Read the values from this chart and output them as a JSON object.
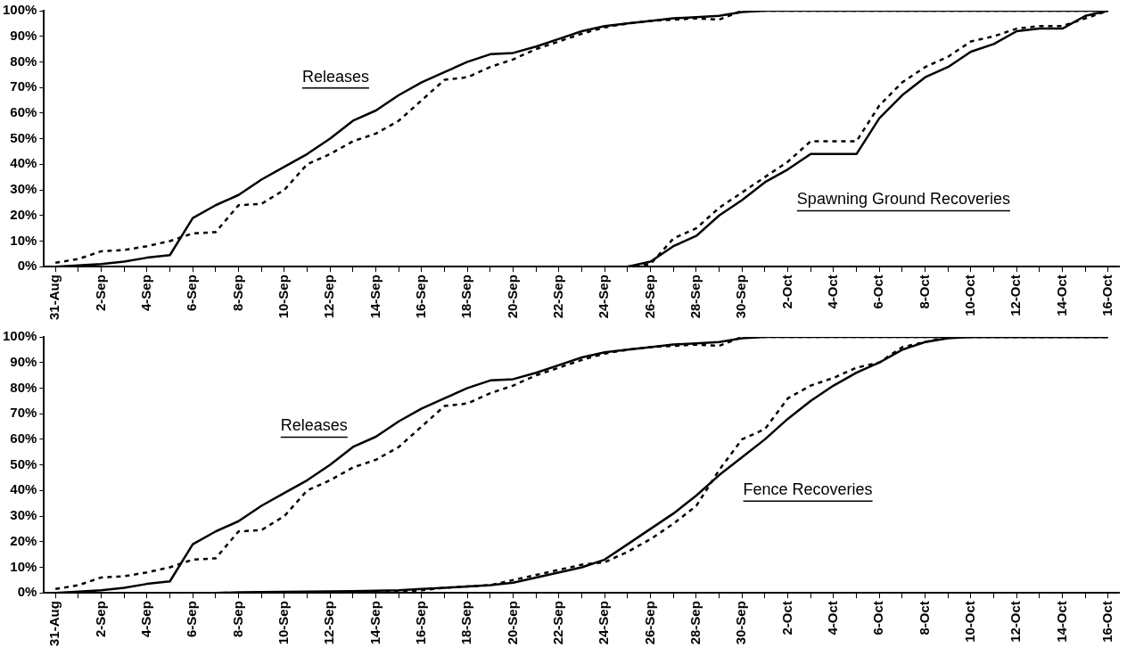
{
  "chart_data": [
    {
      "type": "line",
      "categories": [
        "31-Aug",
        null,
        "2-Sep",
        null,
        "4-Sep",
        null,
        "6-Sep",
        null,
        "8-Sep",
        null,
        "10-Sep",
        null,
        "12-Sep",
        null,
        "14-Sep",
        null,
        "16-Sep",
        null,
        "18-Sep",
        null,
        "20-Sep",
        null,
        "22-Sep",
        null,
        "24-Sep",
        null,
        "26-Sep",
        null,
        "28-Sep",
        null,
        "30-Sep",
        null,
        "2-Oct",
        null,
        "4-Oct",
        null,
        "6-Oct",
        null,
        "8-Oct",
        null,
        "10-Oct",
        null,
        "12-Oct",
        null,
        "14-Oct",
        null,
        "16-Oct"
      ],
      "series": [
        {
          "color": "#000000",
          "line_style": "solid",
          "values": [
            0,
            0.5,
            1,
            2,
            3.5,
            4.5,
            19,
            24,
            28,
            34,
            39,
            44,
            50,
            57,
            61,
            67,
            72,
            76,
            80,
            83,
            83.5,
            86,
            89,
            92,
            94,
            95,
            96,
            97,
            97.5,
            98,
            99.5,
            100,
            100,
            100,
            100,
            100,
            100,
            100,
            100,
            100,
            100,
            100,
            100,
            100,
            100,
            100,
            100
          ]
        },
        {
          "color": "#000000",
          "line_style": "dashed",
          "values": [
            1.5,
            3,
            6,
            6.5,
            8,
            10,
            13,
            13.5,
            24,
            24.5,
            30,
            40,
            44,
            49,
            52,
            57,
            65,
            73,
            74,
            78,
            81,
            85,
            88,
            91,
            93.5,
            95,
            96,
            96.5,
            97,
            96.5,
            100,
            100,
            100,
            100,
            100,
            100,
            100,
            100,
            100,
            100,
            100,
            100,
            100,
            100,
            100,
            100,
            100
          ]
        },
        {
          "color": "#000000",
          "line_style": "solid",
          "values": [
            0,
            0,
            0,
            0,
            0,
            0,
            0,
            0,
            0,
            0,
            0,
            0,
            0,
            0,
            0,
            0,
            0,
            0,
            0,
            0,
            0,
            0,
            0,
            0,
            0,
            0,
            2,
            8,
            12,
            20,
            26,
            33,
            38,
            44,
            44,
            44,
            58,
            67,
            74,
            78,
            84,
            87,
            92,
            93,
            93,
            98,
            100
          ]
        },
        {
          "color": "#000000",
          "line_style": "dashed",
          "values": [
            0,
            0,
            0,
            0,
            0,
            0,
            0,
            0,
            0,
            0,
            0,
            0,
            0,
            0,
            0,
            0,
            0,
            0,
            0,
            0,
            0,
            0,
            0,
            0,
            0,
            0,
            1,
            11,
            15,
            23,
            29,
            35,
            41,
            49,
            49,
            49,
            63,
            72,
            78,
            82,
            88,
            90,
            93,
            94,
            94,
            97,
            100
          ]
        }
      ],
      "ylim": [
        0,
        100
      ],
      "yticks": [
        {
          "value": 0,
          "label": "0%"
        },
        {
          "value": 10,
          "label": "10%"
        },
        {
          "value": 20,
          "label": "20%"
        },
        {
          "value": 30,
          "label": "30%"
        },
        {
          "value": 40,
          "label": "40%"
        },
        {
          "value": 50,
          "label": "50%"
        },
        {
          "value": 60,
          "label": "60%"
        },
        {
          "value": 70,
          "label": "70%"
        },
        {
          "value": 80,
          "label": "80%"
        },
        {
          "value": 90,
          "label": "90%"
        },
        {
          "value": 100,
          "label": "100%"
        }
      ],
      "annotations": [
        "Releases",
        "Spawning Ground Recoveries"
      ],
      "grid": false,
      "legend": false,
      "marker": "none"
    },
    {
      "type": "line",
      "categories": [
        "31-Aug",
        null,
        "2-Sep",
        null,
        "4-Sep",
        null,
        "6-Sep",
        null,
        "8-Sep",
        null,
        "10-Sep",
        null,
        "12-Sep",
        null,
        "14-Sep",
        null,
        "16-Sep",
        null,
        "18-Sep",
        null,
        "20-Sep",
        null,
        "22-Sep",
        null,
        "24-Sep",
        null,
        "26-Sep",
        null,
        "28-Sep",
        null,
        "30-Sep",
        null,
        "2-Oct",
        null,
        "4-Oct",
        null,
        "6-Oct",
        null,
        "8-Oct",
        null,
        "10-Oct",
        null,
        "12-Oct",
        null,
        "14-Oct",
        null,
        "16-Oct"
      ],
      "series": [
        {
          "color": "#000000",
          "line_style": "solid",
          "values": [
            0,
            0.5,
            1,
            2,
            3.5,
            4.5,
            19,
            24,
            28,
            34,
            39,
            44,
            50,
            57,
            61,
            67,
            72,
            76,
            80,
            83,
            83.5,
            86,
            89,
            92,
            94,
            95,
            96,
            97,
            97.5,
            98,
            99.5,
            100,
            100,
            100,
            100,
            100,
            100,
            100,
            100,
            100,
            100,
            100,
            100,
            100,
            100,
            100,
            100
          ]
        },
        {
          "color": "#000000",
          "line_style": "dashed",
          "values": [
            1.5,
            3,
            6,
            6.5,
            8,
            10,
            13,
            13.5,
            24,
            24.5,
            30,
            40,
            44,
            49,
            52,
            57,
            65,
            73,
            74,
            78,
            81,
            85,
            88,
            91,
            93.5,
            95,
            96,
            96.5,
            97,
            96.5,
            100,
            100,
            100,
            100,
            100,
            100,
            100,
            100,
            100,
            100,
            100,
            100,
            100,
            100,
            100,
            100,
            100
          ]
        },
        {
          "color": "#000000",
          "line_style": "solid",
          "values": [
            0,
            0,
            0,
            0,
            0,
            0,
            0,
            0,
            0.2,
            0.3,
            0.4,
            0.5,
            0.6,
            0.7,
            0.8,
            1,
            1.5,
            2,
            2.5,
            3,
            4,
            6,
            8,
            10,
            13,
            19,
            25,
            31,
            38,
            46,
            53,
            60,
            68,
            75,
            81,
            86,
            90,
            95,
            98,
            99.5,
            100,
            100,
            100,
            100,
            100,
            100,
            100
          ]
        },
        {
          "color": "#000000",
          "line_style": "dashed",
          "values": [
            0,
            0,
            0,
            0,
            0,
            0,
            0,
            0,
            0,
            0,
            0,
            0,
            0,
            0,
            0,
            0.5,
            1,
            2,
            2.5,
            3,
            5,
            7,
            9,
            11,
            12,
            16,
            21,
            27,
            34,
            48,
            60,
            64,
            76,
            81,
            84,
            88,
            90,
            96,
            98,
            100,
            100,
            100,
            100,
            100,
            100,
            100,
            100
          ]
        }
      ],
      "ylim": [
        0,
        100
      ],
      "yticks": [
        {
          "value": 0,
          "label": "0%"
        },
        {
          "value": 10,
          "label": "10%"
        },
        {
          "value": 20,
          "label": "20%"
        },
        {
          "value": 30,
          "label": "30%"
        },
        {
          "value": 40,
          "label": "40%"
        },
        {
          "value": 50,
          "label": "50%"
        },
        {
          "value": 60,
          "label": "60%"
        },
        {
          "value": 70,
          "label": "70%"
        },
        {
          "value": 80,
          "label": "80%"
        },
        {
          "value": 90,
          "label": "90%"
        },
        {
          "value": 100,
          "label": "100%"
        }
      ],
      "annotations": [
        "Releases",
        "Fence Recoveries"
      ],
      "grid": false,
      "legend": false,
      "marker": "none"
    }
  ]
}
